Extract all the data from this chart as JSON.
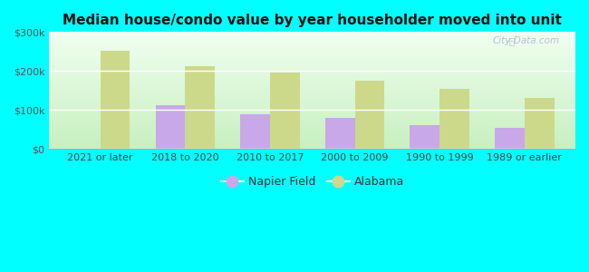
{
  "title": "Median house/condo value by year householder moved into unit",
  "categories": [
    "2021 or later",
    "2018 to 2020",
    "2010 to 2017",
    "2000 to 2009",
    "1990 to 1999",
    "1989 or earlier"
  ],
  "napier_field": [
    0,
    112000,
    88000,
    80000,
    62000,
    53000
  ],
  "alabama": [
    252000,
    213000,
    195000,
    175000,
    155000,
    130000
  ],
  "napier_color": "#c8a8e8",
  "alabama_color": "#ccd98a",
  "background_top": "#f0fff0",
  "background_bottom": "#c8f0c0",
  "outer_background": "#00ffff",
  "ylim": [
    0,
    300000
  ],
  "yticks": [
    0,
    100000,
    200000,
    300000
  ],
  "ytick_labels": [
    "$0",
    "$100k",
    "$200k",
    "$300k"
  ],
  "bar_width": 0.35,
  "legend_napier": "Napier Field",
  "legend_alabama": "Alabama",
  "watermark": "City-Data.com"
}
